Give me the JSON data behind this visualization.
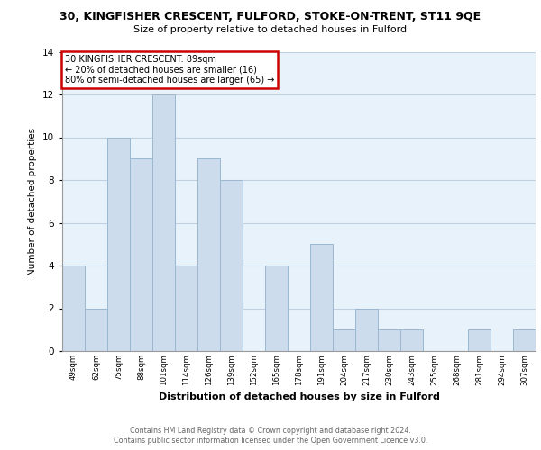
{
  "title_line1": "30, KINGFISHER CRESCENT, FULFORD, STOKE-ON-TRENT, ST11 9QE",
  "title_line2": "Size of property relative to detached houses in Fulford",
  "xlabel": "Distribution of detached houses by size in Fulford",
  "ylabel": "Number of detached properties",
  "bin_labels": [
    "49sqm",
    "62sqm",
    "75sqm",
    "88sqm",
    "101sqm",
    "114sqm",
    "126sqm",
    "139sqm",
    "152sqm",
    "165sqm",
    "178sqm",
    "191sqm",
    "204sqm",
    "217sqm",
    "230sqm",
    "243sqm",
    "255sqm",
    "268sqm",
    "281sqm",
    "294sqm",
    "307sqm"
  ],
  "values": [
    4,
    2,
    10,
    9,
    12,
    4,
    9,
    8,
    0,
    4,
    0,
    5,
    1,
    2,
    1,
    1,
    0,
    0,
    1,
    0,
    1
  ],
  "bar_color": "#ccdcec",
  "bar_edge_color": "#9ab8d0",
  "annotation_line1": "30 KINGFISHER CRESCENT: 89sqm",
  "annotation_line2": "← 20% of detached houses are smaller (16)",
  "annotation_line3": "80% of semi-detached houses are larger (65) →",
  "annotation_box_color": "#ffffff",
  "annotation_box_edge_color": "#cc0000",
  "ylim": [
    0,
    14
  ],
  "yticks": [
    0,
    2,
    4,
    6,
    8,
    10,
    12,
    14
  ],
  "grid_color": "#c0d0e0",
  "background_color": "#e8f2fb",
  "footer_line1": "Contains HM Land Registry data © Crown copyright and database right 2024.",
  "footer_line2": "Contains public sector information licensed under the Open Government Licence v3.0."
}
